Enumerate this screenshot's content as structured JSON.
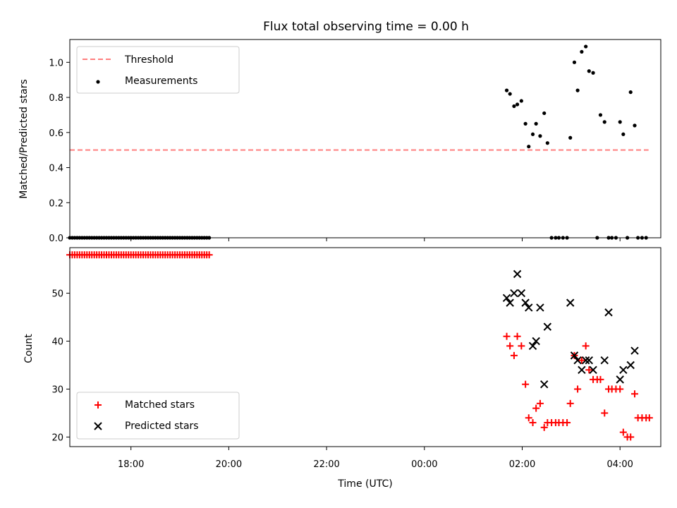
{
  "chart_data": [
    {
      "type": "scatter",
      "title": "Flux total observing time = 0.00 h",
      "ylabel": "Matched/Predicted stars",
      "xlabel": "",
      "xlim": [
        "16:45",
        "04:50"
      ],
      "ylim": [
        0,
        1.13
      ],
      "yticks": [
        "0.0",
        "0.2",
        "0.4",
        "0.6",
        "0.8",
        "1.0"
      ],
      "grid": false,
      "legend_position": "top-left",
      "threshold": {
        "name": "Threshold",
        "value": 0.5,
        "x": [
          "16:45",
          "04:35"
        ],
        "color": "#ff7f7f",
        "style": "dashed"
      },
      "series": [
        {
          "name": "Measurements",
          "marker": "dot",
          "color": "#000000",
          "points": [
            [
              "16:45",
              0
            ],
            [
              "16:48",
              0
            ],
            [
              "16:51",
              0
            ],
            [
              "16:54",
              0
            ],
            [
              "16:57",
              0
            ],
            [
              "17:00",
              0
            ],
            [
              "17:03",
              0
            ],
            [
              "17:06",
              0
            ],
            [
              "17:09",
              0
            ],
            [
              "17:12",
              0
            ],
            [
              "17:15",
              0
            ],
            [
              "17:18",
              0
            ],
            [
              "17:21",
              0
            ],
            [
              "17:24",
              0
            ],
            [
              "17:27",
              0
            ],
            [
              "17:30",
              0
            ],
            [
              "17:33",
              0
            ],
            [
              "17:36",
              0
            ],
            [
              "17:39",
              0
            ],
            [
              "17:42",
              0
            ],
            [
              "17:45",
              0
            ],
            [
              "17:48",
              0
            ],
            [
              "17:51",
              0
            ],
            [
              "17:54",
              0
            ],
            [
              "17:57",
              0
            ],
            [
              "18:00",
              0
            ],
            [
              "18:03",
              0
            ],
            [
              "18:06",
              0
            ],
            [
              "18:09",
              0
            ],
            [
              "18:12",
              0
            ],
            [
              "18:15",
              0
            ],
            [
              "18:18",
              0
            ],
            [
              "18:21",
              0
            ],
            [
              "18:24",
              0
            ],
            [
              "18:27",
              0
            ],
            [
              "18:30",
              0
            ],
            [
              "18:33",
              0
            ],
            [
              "18:36",
              0
            ],
            [
              "18:39",
              0
            ],
            [
              "18:42",
              0
            ],
            [
              "18:45",
              0
            ],
            [
              "18:48",
              0
            ],
            [
              "18:51",
              0
            ],
            [
              "18:54",
              0
            ],
            [
              "18:57",
              0
            ],
            [
              "19:00",
              0
            ],
            [
              "19:03",
              0
            ],
            [
              "19:06",
              0
            ],
            [
              "19:09",
              0
            ],
            [
              "19:12",
              0
            ],
            [
              "19:15",
              0
            ],
            [
              "19:18",
              0
            ],
            [
              "19:21",
              0
            ],
            [
              "19:24",
              0
            ],
            [
              "19:27",
              0
            ],
            [
              "19:30",
              0
            ],
            [
              "19:33",
              0
            ],
            [
              "19:36",
              0
            ],
            [
              "01:41",
              0.84
            ],
            [
              "01:45",
              0.82
            ],
            [
              "01:50",
              0.75
            ],
            [
              "01:54",
              0.76
            ],
            [
              "01:59",
              0.78
            ],
            [
              "02:04",
              0.65
            ],
            [
              "02:08",
              0.52
            ],
            [
              "02:13",
              0.59
            ],
            [
              "02:17",
              0.65
            ],
            [
              "02:22",
              0.58
            ],
            [
              "02:27",
              0.71
            ],
            [
              "02:31",
              0.54
            ],
            [
              "02:36",
              0
            ],
            [
              "02:41",
              0
            ],
            [
              "02:45",
              0
            ],
            [
              "02:50",
              0
            ],
            [
              "02:55",
              0
            ],
            [
              "02:59",
              0.57
            ],
            [
              "03:04",
              1.0
            ],
            [
              "03:08",
              0.84
            ],
            [
              "03:13",
              1.06
            ],
            [
              "03:18",
              1.09
            ],
            [
              "03:22",
              0.95
            ],
            [
              "03:27",
              0.94
            ],
            [
              "03:32",
              0
            ],
            [
              "03:36",
              0.7
            ],
            [
              "03:41",
              0.66
            ],
            [
              "03:46",
              0
            ],
            [
              "03:50",
              0
            ],
            [
              "03:55",
              0
            ],
            [
              "04:00",
              0.66
            ],
            [
              "04:04",
              0.59
            ],
            [
              "04:09",
              0
            ],
            [
              "04:13",
              0.83
            ],
            [
              "04:18",
              0.64
            ],
            [
              "04:22",
              0
            ],
            [
              "04:27",
              0
            ],
            [
              "04:32",
              0
            ]
          ]
        }
      ]
    },
    {
      "type": "scatter",
      "title": "",
      "ylabel": "Count",
      "xlabel": "Time (UTC)",
      "xlim": [
        "16:45",
        "04:50"
      ],
      "ylim": [
        18,
        59.5
      ],
      "xticks": [
        "18:00",
        "20:00",
        "22:00",
        "00:00",
        "02:00",
        "04:00"
      ],
      "yticks": [
        "20",
        "30",
        "40",
        "50"
      ],
      "grid": false,
      "legend_position": "bottom-left",
      "series": [
        {
          "name": "Matched stars",
          "marker": "plus",
          "color": "#ff0000",
          "points": [
            [
              "16:45",
              58
            ],
            [
              "16:48",
              58
            ],
            [
              "16:51",
              58
            ],
            [
              "16:54",
              58
            ],
            [
              "16:57",
              58
            ],
            [
              "17:00",
              58
            ],
            [
              "17:03",
              58
            ],
            [
              "17:06",
              58
            ],
            [
              "17:09",
              58
            ],
            [
              "17:12",
              58
            ],
            [
              "17:15",
              58
            ],
            [
              "17:18",
              58
            ],
            [
              "17:21",
              58
            ],
            [
              "17:24",
              58
            ],
            [
              "17:27",
              58
            ],
            [
              "17:30",
              58
            ],
            [
              "17:33",
              58
            ],
            [
              "17:36",
              58
            ],
            [
              "17:39",
              58
            ],
            [
              "17:42",
              58
            ],
            [
              "17:45",
              58
            ],
            [
              "17:48",
              58
            ],
            [
              "17:51",
              58
            ],
            [
              "17:54",
              58
            ],
            [
              "17:57",
              58
            ],
            [
              "18:00",
              58
            ],
            [
              "18:03",
              58
            ],
            [
              "18:06",
              58
            ],
            [
              "18:09",
              58
            ],
            [
              "18:12",
              58
            ],
            [
              "18:15",
              58
            ],
            [
              "18:18",
              58
            ],
            [
              "18:21",
              58
            ],
            [
              "18:24",
              58
            ],
            [
              "18:27",
              58
            ],
            [
              "18:30",
              58
            ],
            [
              "18:33",
              58
            ],
            [
              "18:36",
              58
            ],
            [
              "18:39",
              58
            ],
            [
              "18:42",
              58
            ],
            [
              "18:45",
              58
            ],
            [
              "18:48",
              58
            ],
            [
              "18:51",
              58
            ],
            [
              "18:54",
              58
            ],
            [
              "18:57",
              58
            ],
            [
              "19:00",
              58
            ],
            [
              "19:03",
              58
            ],
            [
              "19:06",
              58
            ],
            [
              "19:09",
              58
            ],
            [
              "19:12",
              58
            ],
            [
              "19:15",
              58
            ],
            [
              "19:18",
              58
            ],
            [
              "19:21",
              58
            ],
            [
              "19:24",
              58
            ],
            [
              "19:27",
              58
            ],
            [
              "19:30",
              58
            ],
            [
              "19:33",
              58
            ],
            [
              "19:36",
              58
            ],
            [
              "01:41",
              41
            ],
            [
              "01:45",
              39
            ],
            [
              "01:50",
              37
            ],
            [
              "01:54",
              41
            ],
            [
              "01:59",
              39
            ],
            [
              "02:04",
              31
            ],
            [
              "02:08",
              24
            ],
            [
              "02:13",
              23
            ],
            [
              "02:17",
              26
            ],
            [
              "02:22",
              27
            ],
            [
              "02:27",
              22
            ],
            [
              "02:31",
              23
            ],
            [
              "02:36",
              23
            ],
            [
              "02:41",
              23
            ],
            [
              "02:45",
              23
            ],
            [
              "02:50",
              23
            ],
            [
              "02:55",
              23
            ],
            [
              "02:59",
              27
            ],
            [
              "03:04",
              37
            ],
            [
              "03:08",
              30
            ],
            [
              "03:13",
              36
            ],
            [
              "03:18",
              39
            ],
            [
              "03:22",
              34
            ],
            [
              "03:27",
              32
            ],
            [
              "03:32",
              32
            ],
            [
              "03:36",
              32
            ],
            [
              "03:41",
              25
            ],
            [
              "03:46",
              30
            ],
            [
              "03:50",
              30
            ],
            [
              "03:55",
              30
            ],
            [
              "04:00",
              30
            ],
            [
              "04:04",
              21
            ],
            [
              "04:09",
              20
            ],
            [
              "04:13",
              20
            ],
            [
              "04:18",
              29
            ],
            [
              "04:22",
              24
            ],
            [
              "04:27",
              24
            ],
            [
              "04:32",
              24
            ],
            [
              "04:36",
              24
            ]
          ]
        },
        {
          "name": "Predicted stars",
          "marker": "x",
          "color": "#000000",
          "points": [
            [
              "01:41",
              49
            ],
            [
              "01:45",
              48
            ],
            [
              "01:50",
              50
            ],
            [
              "01:54",
              54
            ],
            [
              "01:59",
              50
            ],
            [
              "02:04",
              48
            ],
            [
              "02:08",
              47
            ],
            [
              "02:13",
              39
            ],
            [
              "02:17",
              40
            ],
            [
              "02:22",
              47
            ],
            [
              "02:27",
              31
            ],
            [
              "02:31",
              43
            ],
            [
              "02:59",
              48
            ],
            [
              "03:04",
              37
            ],
            [
              "03:08",
              36
            ],
            [
              "03:13",
              34
            ],
            [
              "03:18",
              36
            ],
            [
              "03:22",
              36
            ],
            [
              "03:27",
              34
            ],
            [
              "03:41",
              36
            ],
            [
              "03:46",
              46
            ],
            [
              "04:00",
              32
            ],
            [
              "04:04",
              34
            ],
            [
              "04:13",
              35
            ],
            [
              "04:18",
              38
            ]
          ]
        }
      ]
    }
  ]
}
